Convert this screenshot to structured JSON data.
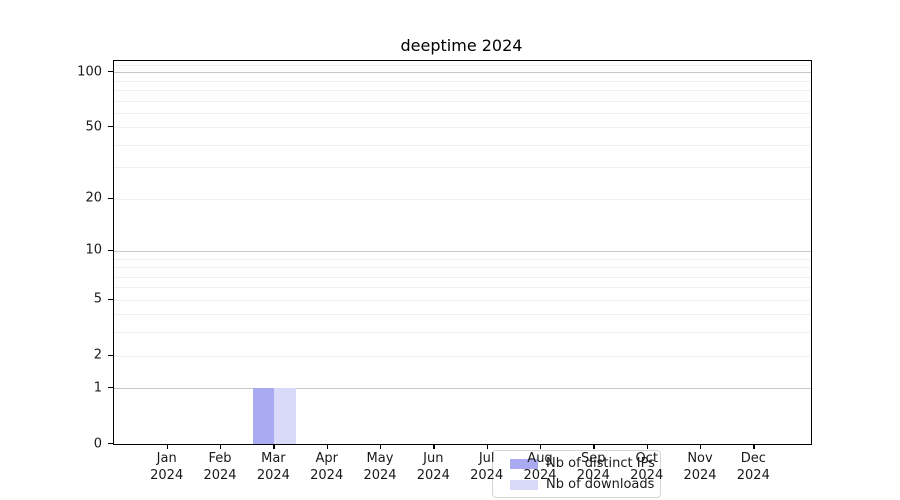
{
  "chart_data": {
    "type": "bar",
    "title": "deeptime 2024",
    "categories": [
      "Jan",
      "Feb",
      "Mar",
      "Apr",
      "May",
      "Jun",
      "Jul",
      "Aug",
      "Sep",
      "Oct",
      "Nov",
      "Dec"
    ],
    "category_year": "2024",
    "series": [
      {
        "name": "Nb of distinct IPs",
        "color": "#aaaaf2",
        "values": [
          0,
          0,
          1,
          0,
          0,
          0,
          0,
          0,
          0,
          0,
          0,
          0
        ]
      },
      {
        "name": "Nb of downloads",
        "color": "#d9d9f9",
        "values": [
          0,
          0,
          1,
          0,
          0,
          0,
          0,
          0,
          0,
          0,
          0,
          0
        ]
      }
    ],
    "yscale": "log1p",
    "ylim": [
      0,
      115
    ],
    "y_tick_values": [
      0,
      1,
      2,
      5,
      10,
      20,
      50,
      100
    ],
    "y_tick_labels": [
      "0",
      "1",
      "2",
      "5",
      "10",
      "20",
      "50",
      "100"
    ],
    "y_major_gridlines": [
      1,
      10,
      100
    ],
    "y_minor_gridlines": [
      2,
      3,
      4,
      5,
      6,
      7,
      8,
      9,
      20,
      30,
      40,
      50,
      60,
      70,
      80,
      90,
      110
    ],
    "grid": "horizontal",
    "legend_position": "lower center",
    "colors": {
      "major_grid": "#c6c6c6",
      "minor_grid": "#efefef",
      "spine": "#000000",
      "text": "#1a1a1a",
      "legend_border": "#d5d5d5",
      "background": "#ffffff"
    }
  }
}
